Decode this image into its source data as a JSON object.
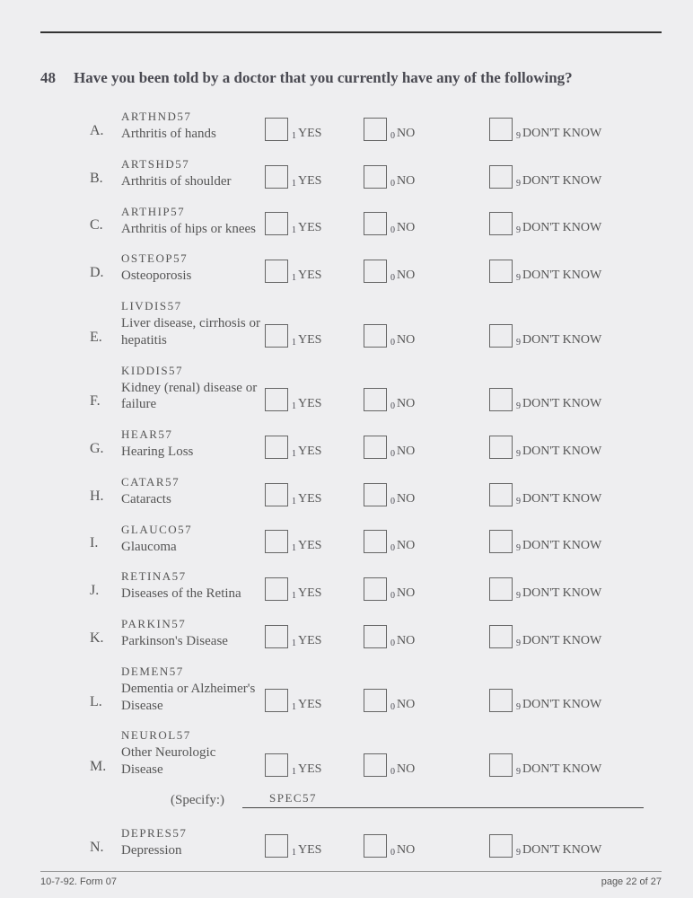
{
  "question_number": "48",
  "question_text": "Have you been told by a doctor that you currently have any of the following?",
  "options": {
    "yes_sub": "1",
    "yes_label": "YES",
    "no_sub": "0",
    "no_label": "NO",
    "dk_sub": "9",
    "dk_label": "DON'T KNOW"
  },
  "items": [
    {
      "letter": "A.",
      "code": "ARTHND57",
      "label": "Arthritis of hands"
    },
    {
      "letter": "B.",
      "code": "ARTSHD57",
      "label": "Arthritis of shoulder"
    },
    {
      "letter": "C.",
      "code": "ARTHIP57",
      "label": "Arthritis of hips or knees"
    },
    {
      "letter": "D.",
      "code": "OSTEOP57",
      "label": "Osteoporosis"
    },
    {
      "letter": "E.",
      "code": "LIVDIS57",
      "label": "Liver disease, cirrhosis or hepatitis"
    },
    {
      "letter": "F.",
      "code": "KIDDIS57",
      "label": "Kidney (renal) disease or failure"
    },
    {
      "letter": "G.",
      "code": "HEAR57",
      "label": "Hearing Loss"
    },
    {
      "letter": "H.",
      "code": "CATAR57",
      "label": "Cataracts"
    },
    {
      "letter": "I.",
      "code": "GLAUCO57",
      "label": "Glaucoma"
    },
    {
      "letter": "J.",
      "code": "RETINA57",
      "label": "Diseases of the Retina"
    },
    {
      "letter": "K.",
      "code": "PARKIN57",
      "label": "Parkinson's Disease"
    },
    {
      "letter": "L.",
      "code": "DEMEN57",
      "label": "Dementia or Alzheimer's Disease"
    },
    {
      "letter": "M.",
      "code": "NEUROL57",
      "label": "Other Neurologic Disease"
    }
  ],
  "specify": {
    "label": "(Specify:)",
    "code": "SPEC57"
  },
  "item_n": {
    "letter": "N.",
    "code": "DEPRES57",
    "label": "Depression"
  },
  "footer_left": "10-7-92. Form 07",
  "footer_right": "page 22 of 27"
}
